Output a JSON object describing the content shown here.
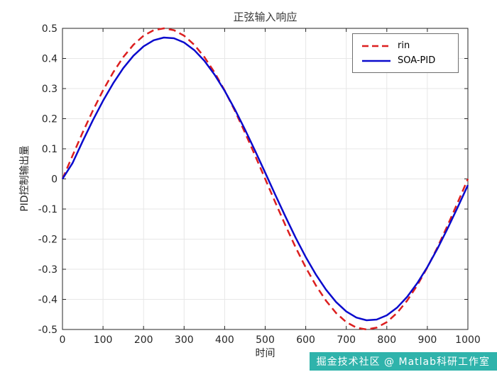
{
  "chart_data": {
    "type": "line",
    "title": "正弦输入响应",
    "xlabel": "时间",
    "ylabel": "PID控制输出量",
    "xlim": [
      0,
      1000
    ],
    "ylim": [
      -0.5,
      0.5
    ],
    "xticks": [
      0,
      100,
      200,
      300,
      400,
      500,
      600,
      700,
      800,
      900,
      1000
    ],
    "yticks": [
      -0.5,
      -0.4,
      -0.3,
      -0.2,
      -0.1,
      0,
      0.1,
      0.2,
      0.3,
      0.4,
      0.5
    ],
    "grid": true,
    "legend_position": "top-right",
    "x": [
      0,
      25,
      50,
      75,
      100,
      125,
      150,
      175,
      200,
      225,
      250,
      275,
      300,
      325,
      350,
      375,
      400,
      425,
      450,
      475,
      500,
      525,
      550,
      575,
      600,
      625,
      650,
      675,
      700,
      725,
      750,
      775,
      800,
      825,
      850,
      875,
      900,
      925,
      950,
      975,
      1000
    ],
    "series": [
      {
        "name": "rin",
        "color": "#dc1f1f",
        "style": "dashed",
        "width": 2.5,
        "values": [
          0,
          0.0782,
          0.1545,
          0.227,
          0.2939,
          0.3536,
          0.4045,
          0.4455,
          0.4755,
          0.4938,
          0.5,
          0.4938,
          0.4755,
          0.4455,
          0.4045,
          0.3536,
          0.2939,
          0.227,
          0.1545,
          0.0782,
          0,
          -0.0782,
          -0.1545,
          -0.227,
          -0.2939,
          -0.3536,
          -0.4045,
          -0.4455,
          -0.4755,
          -0.4938,
          -0.5,
          -0.4938,
          -0.4755,
          -0.4455,
          -0.4045,
          -0.3536,
          -0.2939,
          -0.227,
          -0.1545,
          -0.0782,
          0
        ]
      },
      {
        "name": "SOA-PID",
        "color": "#0a0acd",
        "style": "solid",
        "width": 2.5,
        "values": [
          0,
          0.0531,
          0.1254,
          0.1948,
          0.2593,
          0.3175,
          0.3677,
          0.409,
          0.4402,
          0.4605,
          0.4695,
          0.467,
          0.453,
          0.4278,
          0.3921,
          0.3466,
          0.2927,
          0.2314,
          0.1646,
          0.0938,
          0.0207,
          -0.0531,
          -0.1254,
          -0.1948,
          -0.2593,
          -0.3175,
          -0.3677,
          -0.409,
          -0.4402,
          -0.4605,
          -0.4695,
          -0.467,
          -0.453,
          -0.4278,
          -0.3921,
          -0.3466,
          -0.2927,
          -0.2314,
          -0.1646,
          -0.0938,
          -0.0207
        ]
      }
    ]
  },
  "watermark": {
    "text": "掘金技术社区 @ Matlab科研工作室",
    "bg_color": "#2fb3ab",
    "text_color": "#ffffff"
  }
}
